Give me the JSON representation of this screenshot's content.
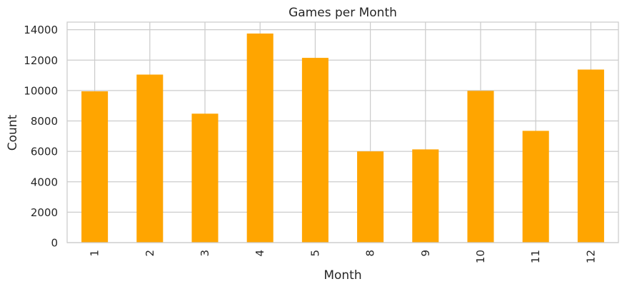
{
  "chart_data": {
    "type": "bar",
    "title": "Games per Month",
    "xlabel": "Month",
    "ylabel": "Count",
    "categories": [
      "1",
      "2",
      "3",
      "4",
      "5",
      "8",
      "9",
      "10",
      "11",
      "12"
    ],
    "values": [
      9950,
      11050,
      8480,
      13750,
      12150,
      6000,
      6130,
      9980,
      7350,
      11380
    ],
    "ylim": [
      0,
      14500
    ],
    "yticks": [
      0,
      2000,
      4000,
      6000,
      8000,
      10000,
      12000,
      14000
    ],
    "grid": true,
    "bar_color": "#FFA500",
    "grid_color": "#CCCCCC",
    "axes_edge_color": "#CCCCCC"
  }
}
